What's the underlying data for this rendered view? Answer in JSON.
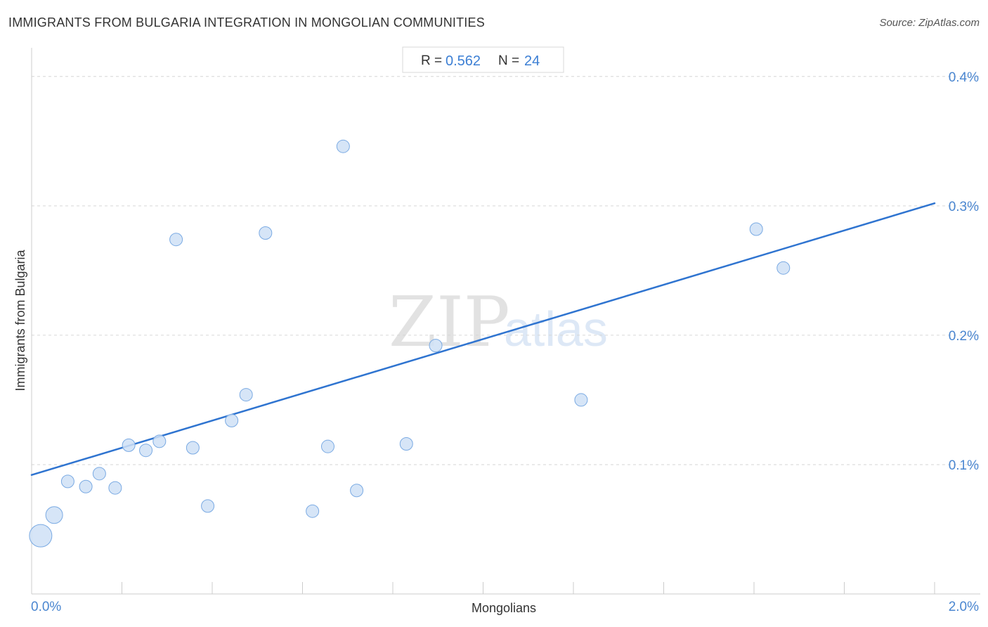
{
  "title": "IMMIGRANTS FROM BULGARIA INTEGRATION IN MONGOLIAN COMMUNITIES",
  "source": "Source: ZipAtlas.com",
  "watermark": {
    "zip": "ZIP",
    "atlas": "atlas"
  },
  "stats": {
    "r_label": "R =",
    "r_value": "0.562",
    "n_label": "N =",
    "n_value": "24"
  },
  "colors": {
    "point_fill": "#cfe0f6",
    "point_stroke": "#7aaae3",
    "trend": "#2f74d0",
    "grid": "#d6d6d6",
    "tick_text": "#4a86d0"
  },
  "chart_data": {
    "type": "scatter",
    "title": "IMMIGRANTS FROM BULGARIA INTEGRATION IN MONGOLIAN COMMUNITIES",
    "xlabel": "Mongolians",
    "ylabel": "Immigrants from Bulgaria",
    "xlim": [
      0.0,
      2.0
    ],
    "ylim": [
      0.0,
      0.42
    ],
    "x_tick_labels": [
      {
        "value": 0.0,
        "label": "0.0%"
      },
      {
        "value": 2.0,
        "label": "2.0%"
      }
    ],
    "y_tick_labels": [
      {
        "value": 0.1,
        "label": "0.1%"
      },
      {
        "value": 0.2,
        "label": "0.2%"
      },
      {
        "value": 0.3,
        "label": "0.3%"
      },
      {
        "value": 0.4,
        "label": "0.4%"
      }
    ],
    "grid": true,
    "trend_line": {
      "x": [
        0.0,
        2.0
      ],
      "y": [
        0.092,
        0.302
      ]
    },
    "points": [
      {
        "x": 0.02,
        "y": 0.045,
        "size": 3
      },
      {
        "x": 0.05,
        "y": 0.061,
        "size": 2
      },
      {
        "x": 0.08,
        "y": 0.087,
        "size": 1
      },
      {
        "x": 0.12,
        "y": 0.083,
        "size": 1
      },
      {
        "x": 0.15,
        "y": 0.093,
        "size": 1
      },
      {
        "x": 0.185,
        "y": 0.082,
        "size": 1
      },
      {
        "x": 0.215,
        "y": 0.115,
        "size": 1
      },
      {
        "x": 0.253,
        "y": 0.111,
        "size": 1
      },
      {
        "x": 0.283,
        "y": 0.118,
        "size": 1
      },
      {
        "x": 0.32,
        "y": 0.274,
        "size": 1
      },
      {
        "x": 0.357,
        "y": 0.113,
        "size": 1
      },
      {
        "x": 0.39,
        "y": 0.068,
        "size": 1
      },
      {
        "x": 0.443,
        "y": 0.134,
        "size": 1
      },
      {
        "x": 0.475,
        "y": 0.154,
        "size": 1
      },
      {
        "x": 0.518,
        "y": 0.279,
        "size": 1
      },
      {
        "x": 0.622,
        "y": 0.064,
        "size": 1
      },
      {
        "x": 0.656,
        "y": 0.114,
        "size": 1
      },
      {
        "x": 0.69,
        "y": 0.346,
        "size": 1
      },
      {
        "x": 0.72,
        "y": 0.08,
        "size": 1
      },
      {
        "x": 0.83,
        "y": 0.116,
        "size": 1
      },
      {
        "x": 0.895,
        "y": 0.192,
        "size": 1
      },
      {
        "x": 1.217,
        "y": 0.15,
        "size": 1
      },
      {
        "x": 1.605,
        "y": 0.282,
        "size": 1
      },
      {
        "x": 1.665,
        "y": 0.252,
        "size": 1
      }
    ]
  }
}
